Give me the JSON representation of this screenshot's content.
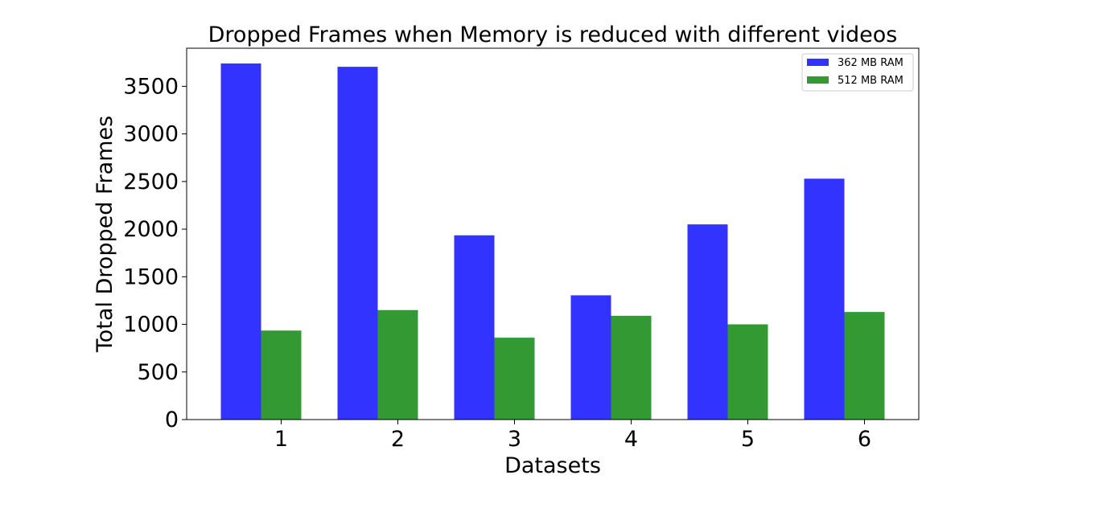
{
  "chart_data": {
    "type": "bar",
    "title": "Dropped Frames when Memory is reduced with different videos",
    "xlabel": "Datasets",
    "ylabel": "Total Dropped Frames",
    "categories": [
      "1",
      "2",
      "3",
      "4",
      "5",
      "6"
    ],
    "ylim": [
      0,
      3900
    ],
    "yticks": [
      0,
      500,
      1000,
      1500,
      2000,
      2500,
      3000,
      3500
    ],
    "grid": false,
    "legend_position": "top-right",
    "series": [
      {
        "name": "362 MB RAM",
        "color": "#3333ff",
        "values": [
          3740,
          3705,
          1935,
          1305,
          2050,
          2530
        ]
      },
      {
        "name": "512 MB RAM",
        "color": "#339933",
        "values": [
          935,
          1150,
          860,
          1090,
          1000,
          1130
        ]
      }
    ]
  }
}
